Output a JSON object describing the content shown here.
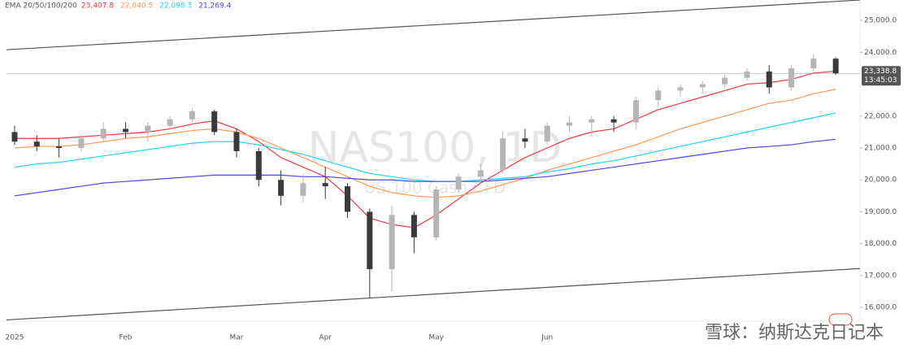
{
  "chart_data": {
    "type": "candlestick",
    "title": "NAS100, 1D",
    "subtitle": "US 100 Cash CFD",
    "legend_label": "EMA 20/50/100/200",
    "categories": [
      "2025",
      null,
      null,
      null,
      null,
      "Feb",
      null,
      null,
      null,
      null,
      "Mar",
      null,
      null,
      null,
      "Apr",
      null,
      null,
      null,
      null,
      "May",
      null,
      null,
      null,
      null,
      "Jun",
      null,
      null,
      null,
      null,
      null,
      null,
      null,
      null,
      null,
      null,
      null,
      null,
      null
    ],
    "open": [
      21500,
      21200,
      21050,
      21000,
      21300,
      21600,
      21500,
      21700,
      21900,
      22150,
      21500,
      20900,
      20000,
      19500,
      19900,
      19800,
      19000,
      17200,
      18900,
      18200,
      19700,
      20100,
      20300,
      21300,
      21200,
      21700,
      21800,
      21900,
      21800,
      22500,
      22800,
      22900,
      23000,
      23200,
      23400,
      22900,
      23500,
      23800
    ],
    "high": [
      21700,
      21400,
      21300,
      21400,
      21800,
      21800,
      21800,
      22000,
      22250,
      22200,
      21600,
      21000,
      20300,
      20200,
      20400,
      19900,
      19100,
      19200,
      19000,
      19800,
      20200,
      20500,
      21500,
      21600,
      21800,
      22000,
      22000,
      22000,
      22600,
      22900,
      23000,
      23100,
      23300,
      23500,
      23600,
      23600,
      23950,
      23850
    ],
    "low": [
      21100,
      20900,
      20700,
      20900,
      21200,
      21300,
      21200,
      21600,
      21800,
      21400,
      20700,
      19800,
      19200,
      19300,
      19400,
      18800,
      16300,
      16500,
      17700,
      18100,
      19600,
      19900,
      20200,
      21000,
      21100,
      21500,
      21400,
      21500,
      21600,
      22300,
      22600,
      22700,
      22900,
      23100,
      22700,
      22800,
      23400,
      23300
    ],
    "close": [
      21200,
      21050,
      21000,
      21300,
      21600,
      21500,
      21700,
      21900,
      22150,
      21500,
      20900,
      20000,
      19500,
      19900,
      19800,
      19000,
      17200,
      18900,
      18200,
      19700,
      20100,
      20300,
      21300,
      21200,
      21700,
      21800,
      21900,
      21800,
      22500,
      22800,
      22900,
      23000,
      23200,
      23400,
      22900,
      23500,
      23800,
      23338.8
    ],
    "up_color": "#b5b5b5",
    "down_color": "#3a3a3a",
    "series": [
      {
        "color": "#f23645",
        "value_label": "23,407.8",
        "values": [
          21300,
          21300,
          21300,
          21350,
          21400,
          21450,
          21500,
          21600,
          21750,
          21850,
          21600,
          21200,
          20700,
          20400,
          20100,
          19500,
          18800,
          18600,
          18500,
          18900,
          19400,
          19900,
          20300,
          20700,
          21000,
          21300,
          21500,
          21600,
          21900,
          22200,
          22400,
          22600,
          22800,
          23000,
          23050,
          23150,
          23350,
          23407.8
        ]
      },
      {
        "color": "#ff9850",
        "value_label": "22,840.5",
        "values": [
          21000,
          21050,
          21050,
          21100,
          21200,
          21300,
          21350,
          21450,
          21550,
          21600,
          21500,
          21300,
          21000,
          20700,
          20400,
          20100,
          19800,
          19600,
          19500,
          19450,
          19500,
          19650,
          19850,
          20050,
          20300,
          20500,
          20700,
          20900,
          21100,
          21350,
          21600,
          21800,
          22000,
          22200,
          22400,
          22500,
          22700,
          22840.5
        ]
      },
      {
        "color": "#22d3ee",
        "value_label": "22,098.3",
        "values": [
          20400,
          20500,
          20550,
          20650,
          20750,
          20850,
          20950,
          21050,
          21150,
          21200,
          21200,
          21100,
          20950,
          20800,
          20600,
          20400,
          20200,
          20100,
          20000,
          19950,
          19950,
          20000,
          20050,
          20100,
          20250,
          20350,
          20500,
          20600,
          20750,
          20900,
          21050,
          21200,
          21350,
          21500,
          21650,
          21800,
          21950,
          22098.3
        ]
      },
      {
        "color": "#4f46e5",
        "value_label": "21,269.4",
        "values": [
          19500,
          19600,
          19700,
          19800,
          19900,
          19950,
          20000,
          20050,
          20100,
          20150,
          20150,
          20150,
          20150,
          20100,
          20100,
          20050,
          20000,
          20000,
          19950,
          19950,
          19950,
          19950,
          20000,
          20050,
          20100,
          20200,
          20300,
          20400,
          20500,
          20600,
          20700,
          20800,
          20900,
          21000,
          21050,
          21100,
          21200,
          21269.4
        ]
      }
    ],
    "trendlines": [
      [
        24080,
        25640
      ],
      [
        15610,
        17220
      ]
    ],
    "last_price": {
      "value": 23338.8,
      "label": "23,338.8"
    },
    "countdown": "13:45:03",
    "ylim": [
      15570,
      25640
    ],
    "yticks": [
      {
        "value": 16000,
        "label": "16,000.0"
      },
      {
        "value": 17000,
        "label": "17,000.0"
      },
      {
        "value": 18000,
        "label": "18,000.0"
      },
      {
        "value": 19000,
        "label": "19,000.0"
      },
      {
        "value": 20000,
        "label": "20,000.0"
      },
      {
        "value": 21000,
        "label": "21,000.0"
      },
      {
        "value": 22000,
        "label": "22,000.0"
      },
      {
        "value": 24000,
        "label": "24,000.0"
      },
      {
        "value": 25000,
        "label": "25,000.0"
      }
    ]
  },
  "watermark": "雪球：纳斯达克日记本"
}
